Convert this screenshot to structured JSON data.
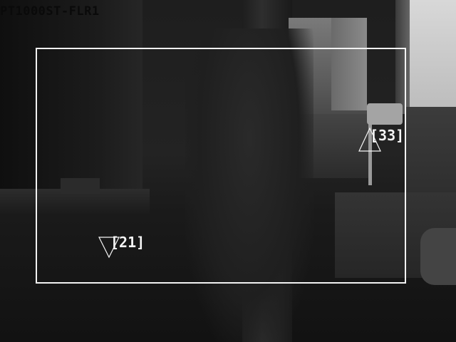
{
  "camera": {
    "label": "PT1000ST-FLR1"
  },
  "overlay": {
    "roi_color": "#f2f2f2",
    "spots": [
      {
        "id": "hot",
        "icon": "triangle-up-icon",
        "value": "[33]"
      },
      {
        "id": "cold",
        "icon": "triangle-down-icon",
        "value": "[21]"
      }
    ]
  }
}
